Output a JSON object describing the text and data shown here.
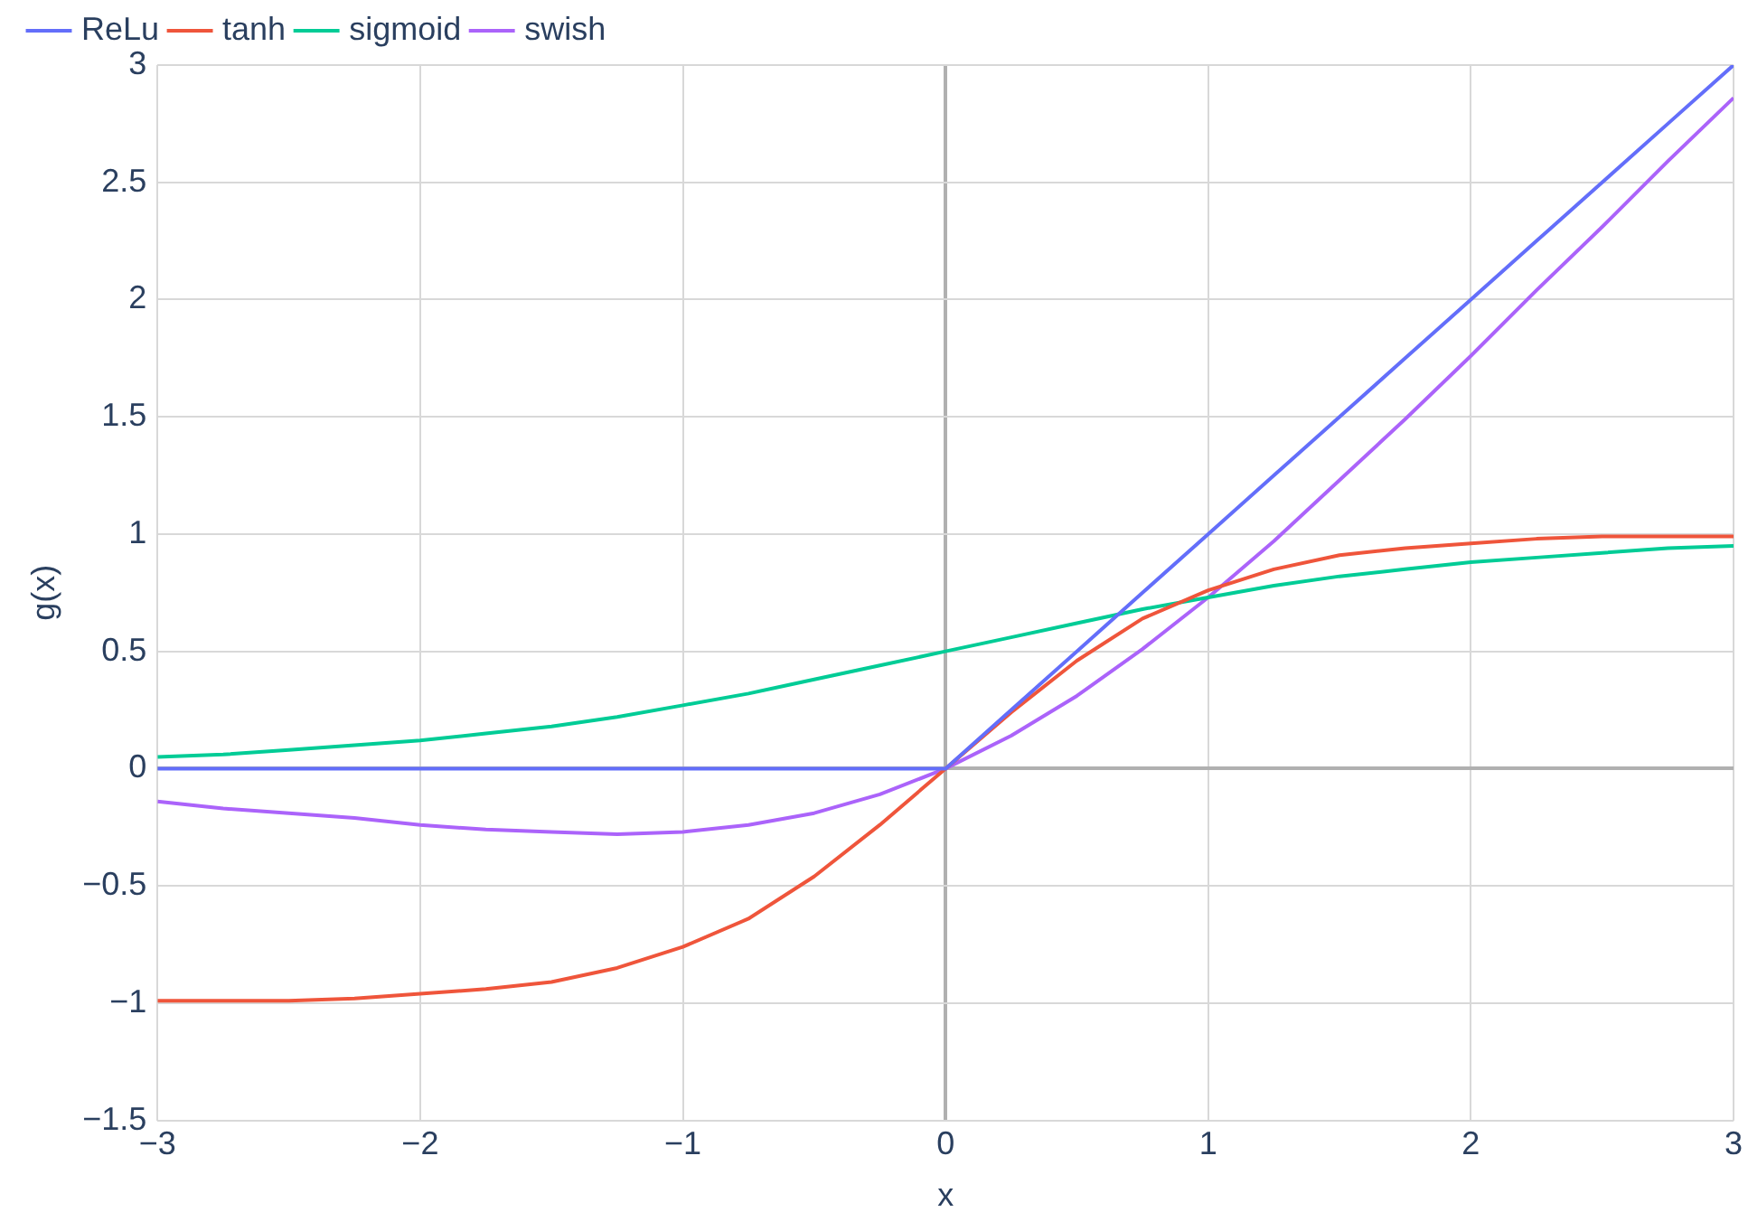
{
  "chart_data": {
    "type": "line",
    "xlabel": "x",
    "ylabel": "g(x)",
    "x": [
      -3,
      -2.75,
      -2.5,
      -2.25,
      -2,
      -1.75,
      -1.5,
      -1.25,
      -1,
      -0.75,
      -0.5,
      -0.25,
      0,
      0.25,
      0.5,
      0.75,
      1,
      1.25,
      1.5,
      1.75,
      2,
      2.25,
      2.5,
      2.75,
      3
    ],
    "series": [
      {
        "name": "ReLu",
        "color": "#636efa",
        "values": [
          0,
          0,
          0,
          0,
          0,
          0,
          0,
          0,
          0,
          0,
          0,
          0,
          0,
          0.25,
          0.5,
          0.75,
          1,
          1.25,
          1.5,
          1.75,
          2,
          2.25,
          2.5,
          2.75,
          3
        ]
      },
      {
        "name": "tanh",
        "color": "#ef553b",
        "values": [
          -0.99,
          -0.99,
          -0.99,
          -0.98,
          -0.96,
          -0.94,
          -0.91,
          -0.85,
          -0.76,
          -0.64,
          -0.46,
          -0.24,
          0,
          0.24,
          0.46,
          0.64,
          0.76,
          0.85,
          0.91,
          0.94,
          0.96,
          0.98,
          0.99,
          0.99,
          0.99
        ]
      },
      {
        "name": "sigmoid",
        "color": "#00cc96",
        "values": [
          0.05,
          0.06,
          0.08,
          0.1,
          0.12,
          0.15,
          0.18,
          0.22,
          0.27,
          0.32,
          0.38,
          0.44,
          0.5,
          0.56,
          0.62,
          0.68,
          0.73,
          0.78,
          0.82,
          0.85,
          0.88,
          0.9,
          0.92,
          0.94,
          0.95
        ]
      },
      {
        "name": "swish",
        "color": "#ab63fa",
        "values": [
          -0.14,
          -0.17,
          -0.19,
          -0.21,
          -0.24,
          -0.26,
          -0.27,
          -0.28,
          -0.27,
          -0.24,
          -0.19,
          -0.11,
          0,
          0.14,
          0.31,
          0.51,
          0.73,
          0.97,
          1.23,
          1.49,
          1.76,
          2.04,
          2.31,
          2.59,
          2.86
        ]
      }
    ],
    "xlim": [
      -3,
      3
    ],
    "ylim": [
      -1.5,
      3
    ],
    "xticks": [
      {
        "value": -3,
        "label": "−3"
      },
      {
        "value": -2,
        "label": "−2"
      },
      {
        "value": -1,
        "label": "−1"
      },
      0,
      1,
      2,
      3
    ],
    "yticks": [
      {
        "value": -1.5,
        "label": "−1.5"
      },
      {
        "value": -1,
        "label": "−1"
      },
      {
        "value": -0.5,
        "label": "−0.5"
      },
      0,
      0.5,
      1,
      1.5,
      2,
      2.5,
      3
    ],
    "grid": true,
    "legend": "top left",
    "marker": "none",
    "line_style": "solid"
  }
}
